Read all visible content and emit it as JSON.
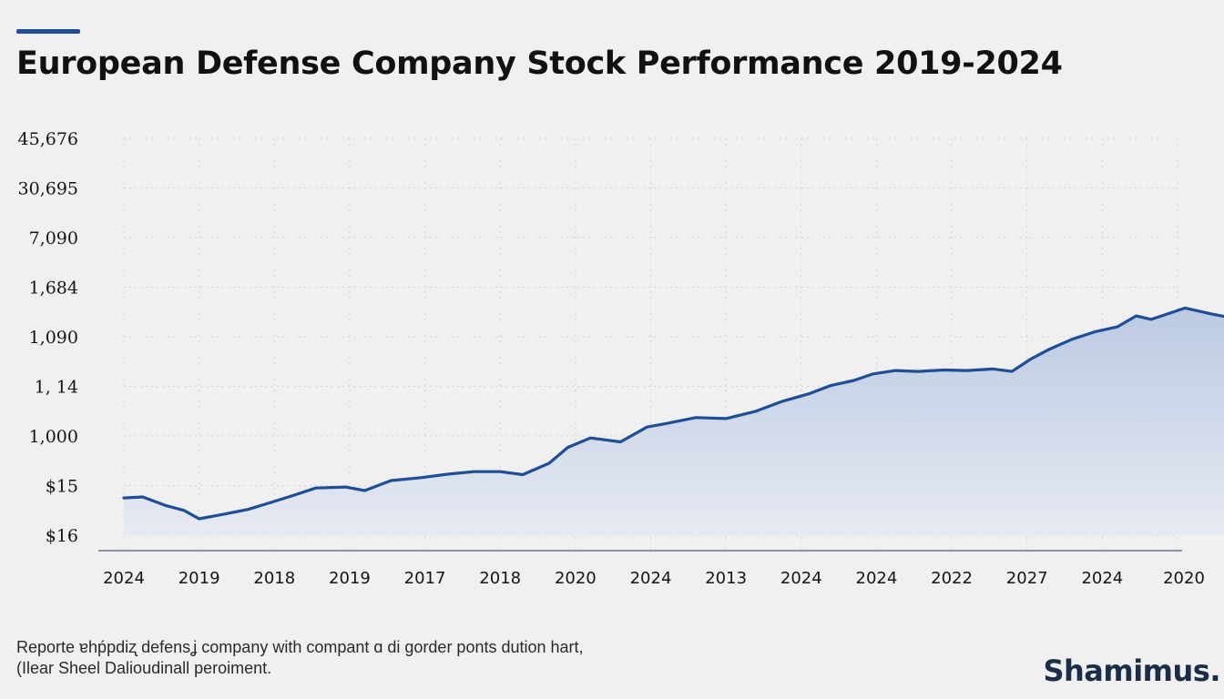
{
  "header": {
    "title": "European Defense Company Stock Performance 2019-2024"
  },
  "footer": {
    "caption_line1": "Reporte ɐhṕpdiʐ defensʝ company with compant ɑ di gorder ponts dution hart,",
    "caption_line2": "(Ilear Sheel Dalioudinall peroiment.",
    "brand": "Shamimus."
  },
  "colors": {
    "line": "#1f4e96",
    "fill_top": "#9cb2d8",
    "fill_bottom": "#e6eaf2",
    "background": "#f0f0f0",
    "grid": "#d6d6d6",
    "axis": "#8a94a6"
  },
  "chart_data": {
    "type": "area",
    "title": "European Defense Company Stock Performance 2019-2024",
    "xlabel": "",
    "ylabel": "",
    "y_tick_labels": [
      "45,676",
      "30,695",
      "7,090",
      "1,684",
      "1,090",
      "1, 14",
      "1,000",
      "$15",
      "$16"
    ],
    "x_tick_labels": [
      "2024",
      "2019",
      "2018",
      "2019",
      "2017",
      "2018",
      "2020",
      "2024",
      "2013",
      "2024",
      "2024",
      "2022",
      "2027",
      "2024",
      "2020"
    ],
    "y_range": [
      0,
      8
    ],
    "grid": true,
    "end_marker": true,
    "series": [
      {
        "values": [
          [
            0.0,
            0.75
          ],
          [
            0.25,
            0.77
          ],
          [
            0.55,
            0.6
          ],
          [
            0.8,
            0.5
          ],
          [
            1.0,
            0.33
          ],
          [
            1.25,
            0.4
          ],
          [
            1.65,
            0.52
          ],
          [
            2.0,
            0.68
          ],
          [
            2.25,
            0.8
          ],
          [
            2.55,
            0.95
          ],
          [
            2.95,
            0.97
          ],
          [
            3.2,
            0.9
          ],
          [
            3.55,
            1.1
          ],
          [
            3.95,
            1.16
          ],
          [
            4.3,
            1.23
          ],
          [
            4.65,
            1.28
          ],
          [
            5.0,
            1.28
          ],
          [
            5.3,
            1.22
          ],
          [
            5.65,
            1.45
          ],
          [
            5.9,
            1.77
          ],
          [
            6.2,
            1.96
          ],
          [
            6.6,
            1.88
          ],
          [
            6.95,
            2.18
          ],
          [
            7.2,
            2.25
          ],
          [
            7.6,
            2.37
          ],
          [
            8.0,
            2.35
          ],
          [
            8.4,
            2.5
          ],
          [
            8.75,
            2.7
          ],
          [
            9.1,
            2.85
          ],
          [
            9.4,
            3.02
          ],
          [
            9.7,
            3.12
          ],
          [
            9.95,
            3.25
          ],
          [
            10.25,
            3.32
          ],
          [
            10.55,
            3.3
          ],
          [
            10.9,
            3.33
          ],
          [
            11.2,
            3.32
          ],
          [
            11.55,
            3.35
          ],
          [
            11.8,
            3.3
          ],
          [
            12.05,
            3.55
          ],
          [
            12.3,
            3.75
          ],
          [
            12.6,
            3.95
          ],
          [
            12.9,
            4.1
          ],
          [
            13.2,
            4.2
          ],
          [
            13.45,
            4.42
          ],
          [
            13.65,
            4.35
          ],
          [
            14.1,
            4.58
          ],
          [
            14.45,
            4.46
          ],
          [
            14.75,
            4.37
          ],
          [
            15.05,
            4.41
          ],
          [
            15.35,
            4.46
          ],
          [
            15.7,
            4.62
          ],
          [
            16.0,
            4.77
          ],
          [
            16.3,
            5.05
          ],
          [
            16.5,
            5.25
          ],
          [
            16.75,
            5.3
          ],
          [
            17.1,
            5.46
          ],
          [
            17.4,
            5.78
          ],
          [
            17.7,
            6.12
          ],
          [
            18.0,
            6.25
          ],
          [
            18.3,
            6.6
          ],
          [
            18.6,
            6.72
          ],
          [
            18.9,
            6.88
          ],
          [
            19.2,
            6.87
          ],
          [
            19.45,
            6.93
          ],
          [
            19.75,
            7.0
          ],
          [
            20.1,
            7.05
          ],
          [
            20.4,
            7.02
          ],
          [
            20.7,
            6.98
          ],
          [
            21.0,
            7.04
          ],
          [
            21.3,
            7.12
          ],
          [
            21.6,
            7.25
          ],
          [
            21.9,
            7.2
          ],
          [
            22.2,
            7.17
          ],
          [
            22.5,
            7.16
          ],
          [
            22.75,
            7.2
          ],
          [
            23.05,
            7.25
          ],
          [
            23.25,
            7.45
          ],
          [
            23.6,
            7.53
          ],
          [
            23.9,
            7.74
          ],
          [
            24.12,
            7.91
          ]
        ]
      }
    ]
  }
}
